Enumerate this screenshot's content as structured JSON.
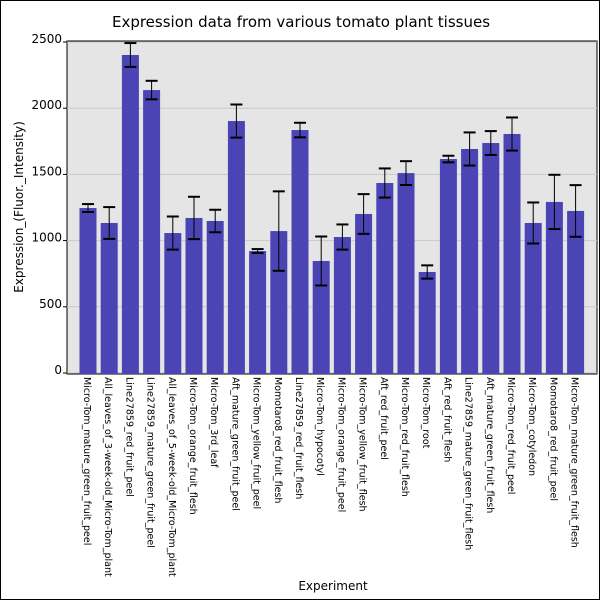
{
  "chart_data": {
    "type": "bar",
    "title": "Expression data from various tomato plant tissues",
    "xlabel": "Experiment",
    "ylabel": "Expression_(Fluor._Intensity)",
    "ylim": [
      -50,
      2550
    ],
    "yticks": [
      0,
      500,
      1000,
      1500,
      2000,
      2500
    ],
    "grid": true,
    "bar_color": "#4b44b5",
    "background": "#e5e5e5",
    "categories": [
      "Micro-Tom_mature_green_fruit_peel",
      "All_leaves_of_3-week-old_Micro-Tom_plant",
      "Line27859_red_fruit_peel",
      "Line27859_mature_green_fruit_peel",
      "All_leaves_of_5-week-old_Micro-Tom_plant",
      "Micro-Tom_orange_fruit_flesh",
      "Micro-Tom_3rd_leaf",
      "Aft_mature_green_fruit_peel",
      "Micro-Tom_yellow_fruit_peel",
      "Momotaro8_red_fruit_flesh",
      "Line27859_red_fruit_flesh",
      "Micro-Tom_hypocotyl",
      "Micro-Tom_orange_fruit_peel",
      "Micro-Tom_yellow_fruit_flesh",
      "Aft_red_fruit_peel",
      "Micro-Tom_red_fruit_flesh",
      "Micro-Tom_root",
      "Aft_red_fruit_flesh",
      "Line27859_mature_green_fruit_flesh",
      "Aft_mature_green_fruit_flesh",
      "Micro-Tom_red_fruit_peel",
      "Micro-Tom_cotyledon",
      "Momotaro8_red_fruit_peel",
      "Micro-Tom_mature_green_fruit_flesh"
    ],
    "values": [
      1246,
      1133,
      2402,
      2137,
      1057,
      1171,
      1148,
      1903,
      921,
      1072,
      1835,
      846,
      1027,
      1201,
      1435,
      1510,
      763,
      1616,
      1692,
      1737,
      1805,
      1133,
      1292,
      1224
    ],
    "errors": [
      30,
      120,
      90,
      70,
      125,
      160,
      85,
      125,
      15,
      300,
      55,
      185,
      95,
      150,
      110,
      90,
      50,
      25,
      125,
      90,
      125,
      155,
      205,
      195
    ]
  }
}
